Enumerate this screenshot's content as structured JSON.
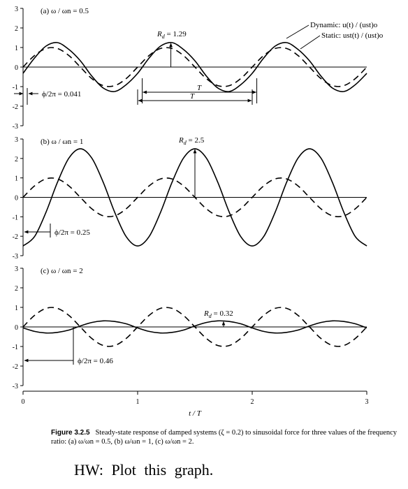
{
  "chart_data": [
    {
      "type": "line",
      "title": "(a) ω / ωn = 0.5",
      "x": [
        0,
        0.1,
        0.2,
        0.3,
        0.4,
        0.5,
        0.6,
        0.7,
        0.8,
        0.9,
        1.0,
        1.1,
        1.2,
        1.3,
        1.4,
        1.5,
        1.6,
        1.7,
        1.8,
        1.9,
        2.0,
        2.1,
        2.2,
        2.3,
        2.4,
        2.5,
        2.6,
        2.7,
        2.8,
        2.9,
        3.0
      ],
      "series": [
        {
          "name": "Dynamic: u(t) / (ust)o",
          "style": "solid",
          "values": [
            -0.32,
            0.46,
            1.07,
            1.25,
            0.9,
            0.32,
            -0.46,
            -1.07,
            -1.25,
            -0.9,
            -0.32,
            0.46,
            1.07,
            1.25,
            0.9,
            0.32,
            -0.46,
            -1.07,
            -1.25,
            -0.9,
            -0.32,
            0.46,
            1.07,
            1.25,
            0.9,
            0.32,
            -0.46,
            -1.07,
            -1.25,
            -0.9,
            -0.32
          ]
        },
        {
          "name": "Static: ust(t) / (ust)o",
          "style": "dashed",
          "values": [
            0,
            0.59,
            0.95,
            0.95,
            0.59,
            0,
            -0.59,
            -0.95,
            -0.95,
            -0.59,
            0,
            0.59,
            0.95,
            0.95,
            0.59,
            0,
            -0.59,
            -0.95,
            -0.95,
            -0.59,
            0,
            0.59,
            0.95,
            0.95,
            0.59,
            0,
            -0.59,
            -0.95,
            -0.95,
            -0.59,
            0
          ]
        }
      ],
      "xlim": [
        0,
        3
      ],
      "ylim": [
        -3,
        3
      ],
      "yticks": [
        "3",
        "2",
        "1",
        "0",
        "-1",
        "-2",
        "-3"
      ],
      "annotations": [
        {
          "label_main": "R",
          "label_sub": "d",
          "label_rest": " = 1.29"
        },
        {
          "label": "ϕ/2π = 0.041"
        },
        {
          "label": "T"
        },
        {
          "label": "T"
        }
      ]
    },
    {
      "type": "line",
      "title": "(b) ω / ωn = 1",
      "x": [
        0,
        0.1,
        0.2,
        0.3,
        0.4,
        0.5,
        0.6,
        0.7,
        0.8,
        0.9,
        1.0,
        1.1,
        1.2,
        1.3,
        1.4,
        1.5,
        1.6,
        1.7,
        1.8,
        1.9,
        2.0,
        2.1,
        2.2,
        2.3,
        2.4,
        2.5,
        2.6,
        2.7,
        2.8,
        2.9,
        3.0
      ],
      "series": [
        {
          "name": "Dynamic",
          "style": "solid",
          "values": [
            -2.5,
            -2.02,
            -0.77,
            0.77,
            2.02,
            2.5,
            2.02,
            0.77,
            -0.77,
            -2.02,
            -2.5,
            -2.02,
            -0.77,
            0.77,
            2.02,
            2.5,
            2.02,
            0.77,
            -0.77,
            -2.02,
            -2.5,
            -2.02,
            -0.77,
            0.77,
            2.02,
            2.5,
            2.02,
            0.77,
            -0.77,
            -2.02,
            -2.5
          ]
        },
        {
          "name": "Static",
          "style": "dashed",
          "values": [
            0,
            0.59,
            0.95,
            0.95,
            0.59,
            0,
            -0.59,
            -0.95,
            -0.95,
            -0.59,
            0,
            0.59,
            0.95,
            0.95,
            0.59,
            0,
            -0.59,
            -0.95,
            -0.95,
            -0.59,
            0,
            0.59,
            0.95,
            0.95,
            0.59,
            0,
            -0.59,
            -0.95,
            -0.95,
            -0.59,
            0
          ]
        }
      ],
      "xlim": [
        0,
        3
      ],
      "ylim": [
        -3,
        3
      ],
      "yticks": [
        "3",
        "2",
        "1",
        "0",
        "-1",
        "-2",
        "-3"
      ],
      "annotations": [
        {
          "label_main": "R",
          "label_sub": "d",
          "label_rest": " = 2.5"
        },
        {
          "label": "ϕ/2π = 0.25"
        }
      ]
    },
    {
      "type": "line",
      "title": "(c) ω / ωn = 2",
      "x": [
        0,
        0.1,
        0.2,
        0.3,
        0.4,
        0.5,
        0.6,
        0.7,
        0.8,
        0.9,
        1.0,
        1.1,
        1.2,
        1.3,
        1.4,
        1.5,
        1.6,
        1.7,
        1.8,
        1.9,
        2.0,
        2.1,
        2.2,
        2.3,
        2.4,
        2.5,
        2.6,
        2.7,
        2.8,
        2.9,
        3.0
      ],
      "series": [
        {
          "name": "Dynamic",
          "style": "solid",
          "values": [
            -0.05,
            -0.23,
            -0.31,
            -0.28,
            -0.16,
            0.05,
            0.23,
            0.31,
            0.28,
            0.16,
            -0.05,
            -0.23,
            -0.31,
            -0.28,
            -0.16,
            0.05,
            0.23,
            0.31,
            0.28,
            0.16,
            -0.05,
            -0.23,
            -0.31,
            -0.28,
            -0.16,
            0.05,
            0.23,
            0.31,
            0.28,
            0.16,
            -0.05
          ]
        },
        {
          "name": "Static",
          "style": "dashed",
          "values": [
            0,
            0.59,
            0.95,
            0.95,
            0.59,
            0,
            -0.59,
            -0.95,
            -0.95,
            -0.59,
            0,
            0.59,
            0.95,
            0.95,
            0.59,
            0,
            -0.59,
            -0.95,
            -0.95,
            -0.59,
            0,
            0.59,
            0.95,
            0.95,
            0.59,
            0,
            -0.59,
            -0.95,
            -0.95,
            -0.59,
            0
          ]
        }
      ],
      "xlim": [
        0,
        3
      ],
      "ylim": [
        -3,
        3
      ],
      "yticks": [
        "3",
        "2",
        "1",
        "0",
        "-1",
        "-2",
        "-3"
      ],
      "xticks": [
        "0",
        "1",
        "2",
        "3"
      ],
      "xlabel": "t / T",
      "annotations": [
        {
          "label_main": "R",
          "label_sub": "d",
          "label_rest": " = 0.32"
        },
        {
          "label": "ϕ/2π = 0.46"
        }
      ]
    }
  ],
  "caption": {
    "label": "Figure 3.2.5",
    "text": "Steady-state response of damped systems (ζ = 0.2) to sinusoidal force for three values of the frequency ratio: (a) ω/ωn = 0.5, (b) ω/ωn = 1, (c) ω/ωn = 2."
  },
  "homework": "HW: Plot this graph."
}
